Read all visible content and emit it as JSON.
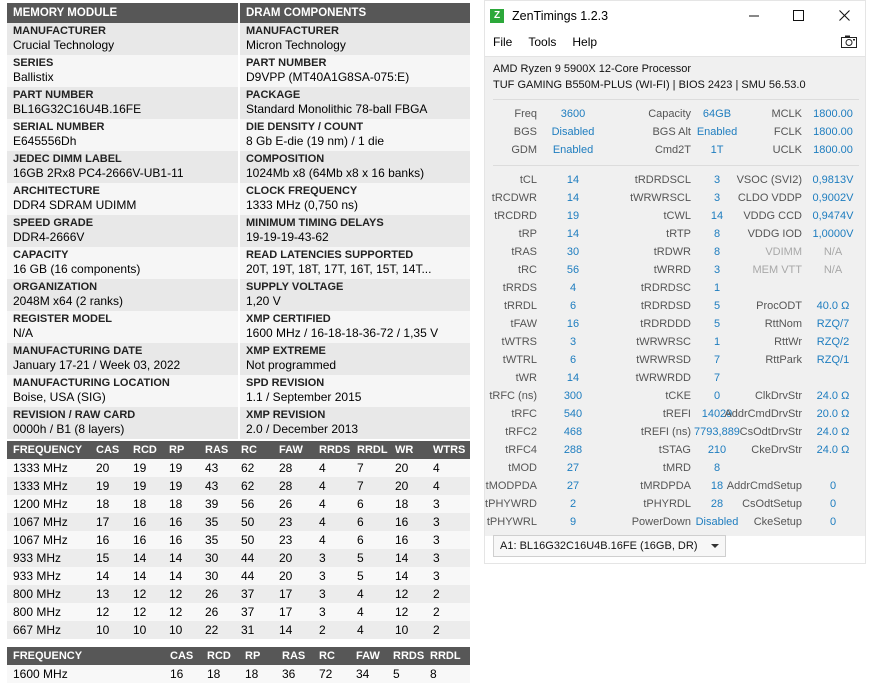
{
  "spec": {
    "header_left": "MEMORY MODULE",
    "header_right": "DRAM COMPONENTS",
    "rows": [
      {
        "l_label": "MANUFACTURER",
        "l_value": "Crucial Technology",
        "r_label": "MANUFACTURER",
        "r_value": "Micron Technology"
      },
      {
        "l_label": "SERIES",
        "l_value": "Ballistix",
        "r_label": "PART NUMBER",
        "r_value": "D9VPP (MT40A1G8SA-075:E)"
      },
      {
        "l_label": "PART NUMBER",
        "l_value": "BL16G32C16U4B.16FE",
        "r_label": "PACKAGE",
        "r_value": "Standard Monolithic 78-ball FBGA"
      },
      {
        "l_label": "SERIAL NUMBER",
        "l_value": "E645556Dh",
        "r_label": "DIE DENSITY / COUNT",
        "r_value": "8 Gb E-die (19 nm) / 1 die"
      },
      {
        "l_label": "JEDEC DIMM LABEL",
        "l_value": "16GB 2Rx8 PC4-2666V-UB1-11",
        "r_label": "COMPOSITION",
        "r_value": "1024Mb x8 (64Mb x8 x 16 banks)"
      },
      {
        "l_label": "ARCHITECTURE",
        "l_value": "DDR4 SDRAM UDIMM",
        "r_label": "CLOCK FREQUENCY",
        "r_value": "1333 MHz (0,750 ns)"
      },
      {
        "l_label": "SPEED GRADE",
        "l_value": "DDR4-2666V",
        "r_label": "MINIMUM TIMING DELAYS",
        "r_value": "19-19-19-43-62"
      },
      {
        "l_label": "CAPACITY",
        "l_value": "16 GB (16 components)",
        "r_label": "READ LATENCIES SUPPORTED",
        "r_value": "20T, 19T, 18T, 17T, 16T, 15T, 14T..."
      },
      {
        "l_label": "ORGANIZATION",
        "l_value": "2048M x64 (2 ranks)",
        "r_label": "SUPPLY VOLTAGE",
        "r_value": "1,20 V"
      },
      {
        "l_label": "REGISTER MODEL",
        "l_value": "N/A",
        "r_label": "XMP CERTIFIED",
        "r_value": "1600 MHz / 16-18-18-36-72 / 1,35 V"
      },
      {
        "l_label": "MANUFACTURING DATE",
        "l_value": "January 17-21 / Week 03, 2022",
        "r_label": "XMP EXTREME",
        "r_value": "Not programmed"
      },
      {
        "l_label": "MANUFACTURING LOCATION",
        "l_value": "Boise, USA (SIG)",
        "r_label": "SPD REVISION",
        "r_value": "1.1 / September 2015"
      },
      {
        "l_label": "REVISION / RAW CARD",
        "l_value": "0000h / B1 (8 layers)",
        "r_label": "XMP REVISION",
        "r_value": "2.0 / December 2013"
      }
    ]
  },
  "freq_table": {
    "headers": [
      "FREQUENCY",
      "CAS",
      "RCD",
      "RP",
      "RAS",
      "RC",
      "FAW",
      "RRDS",
      "RRDL",
      "WR",
      "WTRS"
    ],
    "rows": [
      [
        "1333 MHz",
        "20",
        "19",
        "19",
        "43",
        "62",
        "28",
        "4",
        "7",
        "20",
        "4"
      ],
      [
        "1333 MHz",
        "19",
        "19",
        "19",
        "43",
        "62",
        "28",
        "4",
        "7",
        "20",
        "4"
      ],
      [
        "1200 MHz",
        "18",
        "18",
        "18",
        "39",
        "56",
        "26",
        "4",
        "6",
        "18",
        "3"
      ],
      [
        "1067 MHz",
        "17",
        "16",
        "16",
        "35",
        "50",
        "23",
        "4",
        "6",
        "16",
        "3"
      ],
      [
        "1067 MHz",
        "16",
        "16",
        "16",
        "35",
        "50",
        "23",
        "4",
        "6",
        "16",
        "3"
      ],
      [
        "933 MHz",
        "15",
        "14",
        "14",
        "30",
        "44",
        "20",
        "3",
        "5",
        "14",
        "3"
      ],
      [
        "933 MHz",
        "14",
        "14",
        "14",
        "30",
        "44",
        "20",
        "3",
        "5",
        "14",
        "3"
      ],
      [
        "800 MHz",
        "13",
        "12",
        "12",
        "26",
        "37",
        "17",
        "3",
        "4",
        "12",
        "2"
      ],
      [
        "800 MHz",
        "12",
        "12",
        "12",
        "26",
        "37",
        "17",
        "3",
        "4",
        "12",
        "2"
      ],
      [
        "667 MHz",
        "10",
        "10",
        "10",
        "22",
        "31",
        "14",
        "2",
        "4",
        "10",
        "2"
      ]
    ]
  },
  "xmp_table": {
    "headers": [
      "FREQUENCY",
      "CAS",
      "RCD",
      "RP",
      "RAS",
      "RC",
      "FAW",
      "RRDS",
      "RRDL"
    ],
    "rows": [
      [
        "1600 MHz",
        "16",
        "18",
        "18",
        "36",
        "72",
        "34",
        "5",
        "8"
      ]
    ]
  },
  "zen": {
    "title": "ZenTimings 1.2.3",
    "icon_letter": "Z",
    "menu": [
      "File",
      "Tools",
      "Help"
    ],
    "cpu": "AMD Ryzen 9 5900X 12-Core Processor",
    "board": "TUF GAMING B550M-PLUS (WI-FI) | BIOS 2423 | SMU 56.53.0",
    "group1": [
      [
        "Freq",
        "3600",
        "Capacity",
        "64GB",
        "MCLK",
        "1800.00"
      ],
      [
        "BGS",
        "Disabled",
        "BGS Alt",
        "Enabled",
        "FCLK",
        "1800.00"
      ],
      [
        "GDM",
        "Enabled",
        "Cmd2T",
        "1T",
        "UCLK",
        "1800.00"
      ]
    ],
    "group2": [
      [
        "tCL",
        "14",
        "tRDRDSCL",
        "3",
        "VSOC (SVI2)",
        "0,9813V"
      ],
      [
        "tRCDWR",
        "14",
        "tWRWRSCL",
        "3",
        "CLDO VDDP",
        "0,9002V"
      ],
      [
        "tRCDRD",
        "19",
        "tCWL",
        "14",
        "VDDG CCD",
        "0,9474V"
      ],
      [
        "tRP",
        "14",
        "tRTP",
        "8",
        "VDDG IOD",
        "1,0000V"
      ],
      [
        "tRAS",
        "30",
        "tRDWR",
        "8",
        "VDIMM",
        "N/A"
      ],
      [
        "tRC",
        "56",
        "tWRRD",
        "3",
        "MEM VTT",
        "N/A"
      ],
      [
        "tRRDS",
        "4",
        "tRDRDSC",
        "1",
        "",
        ""
      ],
      [
        "tRRDL",
        "6",
        "tRDRDSD",
        "5",
        "ProcODT",
        "40.0 Ω"
      ],
      [
        "tFAW",
        "16",
        "tRDRDDD",
        "5",
        "RttNom",
        "RZQ/7"
      ],
      [
        "tWTRS",
        "3",
        "tWRWRSC",
        "1",
        "RttWr",
        "RZQ/2"
      ],
      [
        "tWTRL",
        "6",
        "tWRWRSD",
        "7",
        "RttPark",
        "RZQ/1"
      ],
      [
        "tWR",
        "14",
        "tWRWRDD",
        "7",
        "",
        ""
      ],
      [
        "tRFC (ns)",
        "300",
        "tCKE",
        "0",
        "ClkDrvStr",
        "24.0 Ω"
      ],
      [
        "tRFC",
        "540",
        "tREFI",
        "14029",
        "AddrCmdDrvStr",
        "20.0 Ω"
      ],
      [
        "tRFC2",
        "468",
        "tREFI (ns)",
        "7793,889",
        "CsOdtDrvStr",
        "24.0 Ω"
      ],
      [
        "tRFC4",
        "288",
        "tSTAG",
        "210",
        "CkeDrvStr",
        "24.0 Ω"
      ],
      [
        "tMOD",
        "27",
        "tMRD",
        "8",
        "",
        ""
      ],
      [
        "tMODPDA",
        "27",
        "tMRDPDA",
        "18",
        "AddrCmdSetup",
        "0"
      ],
      [
        "tPHYWRD",
        "2",
        "tPHYRDL",
        "28",
        "CsOdtSetup",
        "0"
      ],
      [
        "tPHYWRL",
        "9",
        "PowerDown",
        "Disabled",
        "CkeSetup",
        "0"
      ]
    ],
    "dim_labels": [
      "VDIMM",
      "MEM VTT"
    ],
    "dimm_select": "A1: BL16G32C16U4B.16FE (16GB, DR)"
  }
}
